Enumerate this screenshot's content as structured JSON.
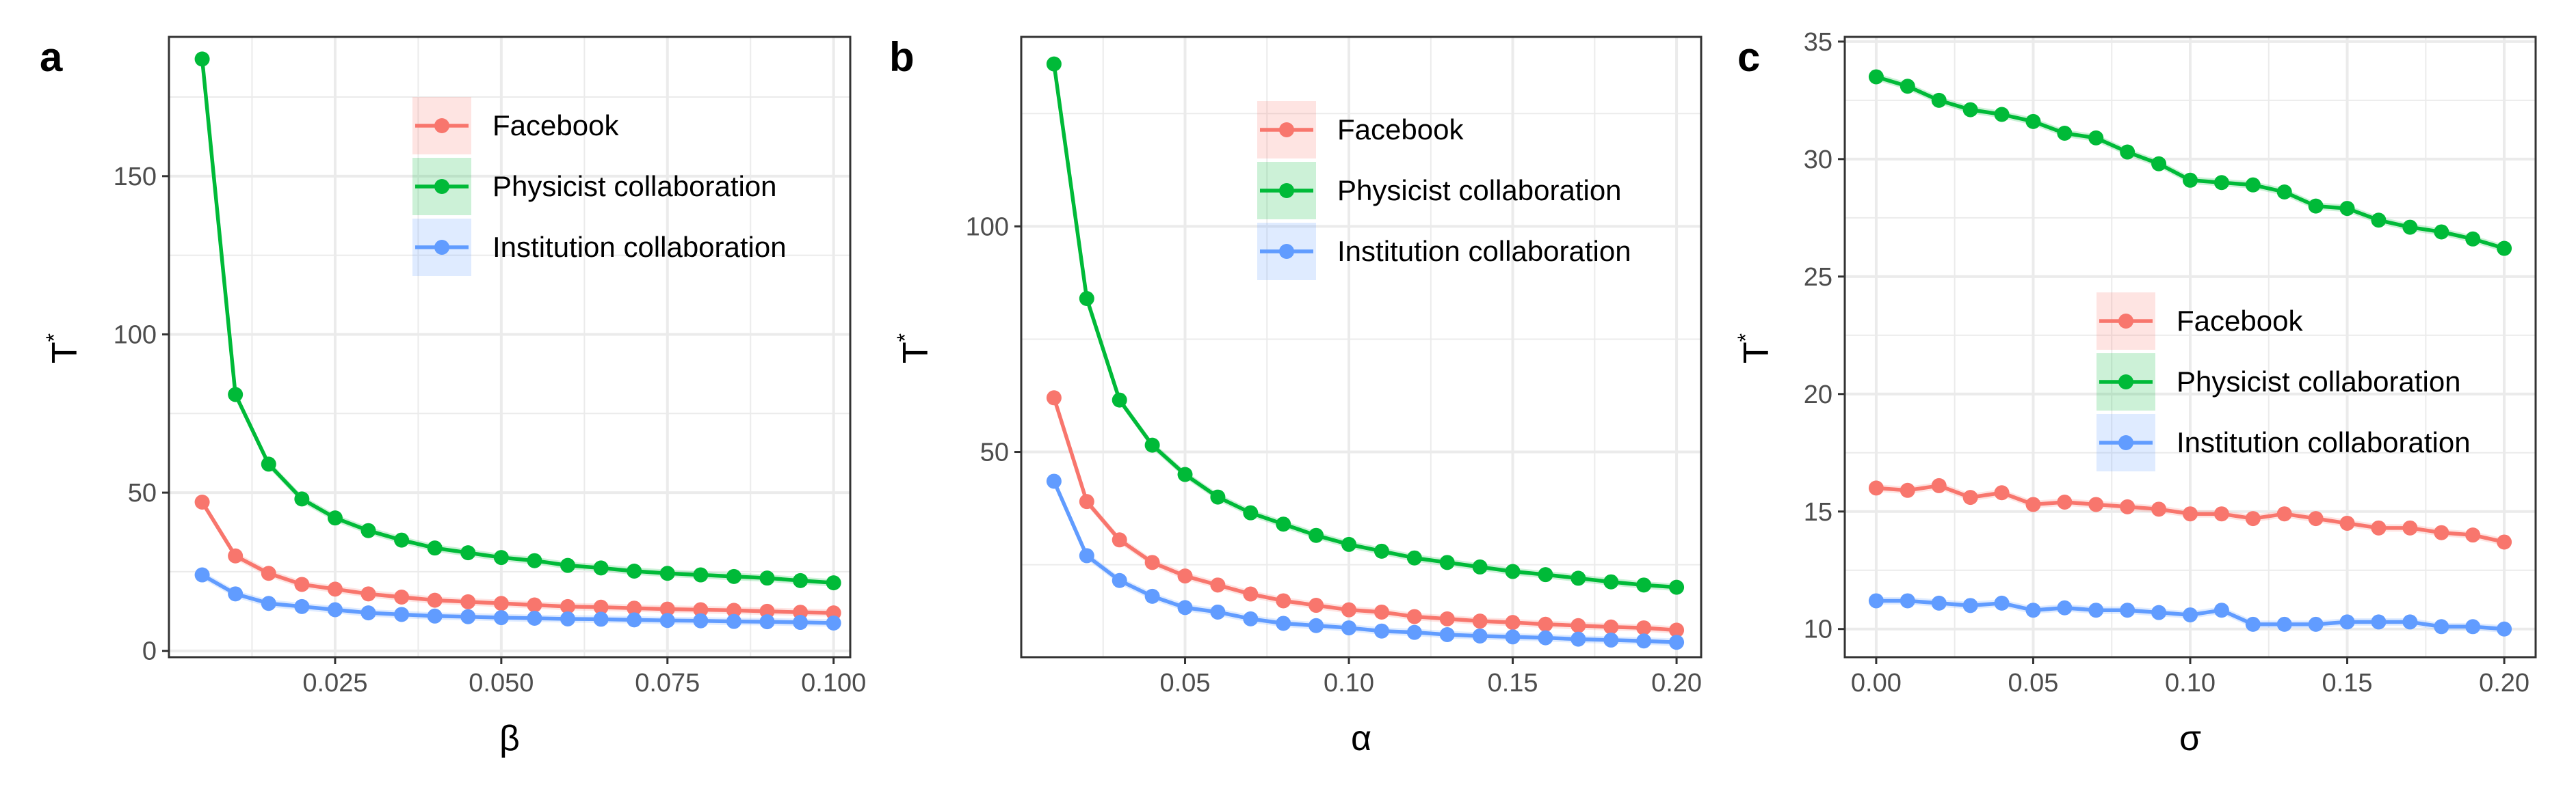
{
  "colors": {
    "facebook": "#F8766D",
    "physicist": "#00BA38",
    "institution": "#619CFF",
    "grid": "#ebebeb",
    "panel_border": "#333333",
    "tick_text": "#4d4d4d"
  },
  "chart_data": [
    {
      "type": "line",
      "panel_label": "a",
      "title": "",
      "xlabel": "β",
      "ylabel": "T",
      "ylabel_superscript": "*",
      "xlim": [
        0.0,
        0.1025
      ],
      "ylim": [
        -2,
        194
      ],
      "x_ticks": [
        0.025,
        0.05,
        0.075,
        0.1
      ],
      "x_tick_labels": [
        "0.025",
        "0.050",
        "0.075",
        "0.100"
      ],
      "y_ticks": [
        0,
        50,
        100,
        150
      ],
      "y_tick_labels": [
        "0",
        "50",
        "100",
        "150"
      ],
      "grid": true,
      "legend_position": "top-center",
      "x": [
        0.005,
        0.01,
        0.015,
        0.02,
        0.025,
        0.03,
        0.035,
        0.04,
        0.045,
        0.05,
        0.055,
        0.06,
        0.065,
        0.07,
        0.075,
        0.08,
        0.085,
        0.09,
        0.095,
        0.1
      ],
      "series": [
        {
          "name": "Facebook",
          "values": [
            47,
            30,
            24.5,
            21,
            19.5,
            18,
            17,
            16,
            15.5,
            15,
            14.5,
            14,
            13.8,
            13.5,
            13.2,
            13,
            12.8,
            12.5,
            12.2,
            12
          ]
        },
        {
          "name": "Physicist collaboration",
          "values": [
            187,
            81,
            59,
            48,
            42,
            38,
            35,
            32.5,
            31,
            29.5,
            28.5,
            27,
            26.2,
            25.2,
            24.5,
            24,
            23.5,
            23,
            22.2,
            21.5
          ]
        },
        {
          "name": "Institution collaboration",
          "values": [
            24,
            18,
            15,
            14,
            13,
            12,
            11.5,
            11,
            10.8,
            10.5,
            10.3,
            10.1,
            10,
            9.8,
            9.6,
            9.5,
            9.3,
            9.2,
            9,
            8.8
          ]
        }
      ]
    },
    {
      "type": "line",
      "panel_label": "b",
      "title": "",
      "xlabel": "α",
      "ylabel": "T",
      "ylabel_superscript": "*",
      "xlim": [
        0.0,
        0.2075
      ],
      "ylim": [
        4.5,
        142
      ],
      "x_ticks": [
        0.05,
        0.1,
        0.15,
        0.2
      ],
      "x_tick_labels": [
        "0.05",
        "0.10",
        "0.15",
        "0.20"
      ],
      "y_ticks": [
        50,
        100
      ],
      "y_tick_labels": [
        "50",
        "100"
      ],
      "grid": true,
      "legend_position": "top-right",
      "x": [
        0.01,
        0.02,
        0.03,
        0.04,
        0.05,
        0.06,
        0.07,
        0.08,
        0.09,
        0.1,
        0.11,
        0.12,
        0.13,
        0.14,
        0.15,
        0.16,
        0.17,
        0.18,
        0.19,
        0.2
      ],
      "series": [
        {
          "name": "Facebook",
          "values": [
            62,
            39,
            30.5,
            25.5,
            22.5,
            20.5,
            18.5,
            17,
            16,
            15,
            14.5,
            13.5,
            13,
            12.5,
            12.2,
            11.8,
            11.5,
            11.2,
            11,
            10.5
          ]
        },
        {
          "name": "Physicist collaboration",
          "values": [
            136,
            84,
            61.5,
            51.5,
            45,
            40,
            36.5,
            34,
            31.5,
            29.5,
            28,
            26.5,
            25.5,
            24.5,
            23.5,
            22.8,
            22,
            21.2,
            20.5,
            20
          ]
        },
        {
          "name": "Institution collaboration",
          "values": [
            43.5,
            27,
            21.5,
            18,
            15.5,
            14.5,
            13,
            12,
            11.5,
            11,
            10.3,
            10,
            9.5,
            9.2,
            9,
            8.8,
            8.5,
            8.3,
            8.1,
            7.8
          ]
        }
      ]
    },
    {
      "type": "line",
      "panel_label": "c",
      "title": "",
      "xlabel": "σ",
      "ylabel": "T",
      "ylabel_superscript": "*",
      "xlim": [
        -0.01,
        0.21
      ],
      "ylim": [
        8.8,
        35.2
      ],
      "x_ticks": [
        0.0,
        0.05,
        0.1,
        0.15,
        0.2
      ],
      "x_tick_labels": [
        "0.00",
        "0.05",
        "0.10",
        "0.15",
        "0.20"
      ],
      "y_ticks": [
        10,
        15,
        20,
        25,
        30,
        35
      ],
      "y_tick_labels": [
        "10",
        "15",
        "20",
        "25",
        "30",
        "35"
      ],
      "grid": true,
      "legend_position": "center-right",
      "x": [
        0.0,
        0.01,
        0.02,
        0.03,
        0.04,
        0.05,
        0.06,
        0.07,
        0.08,
        0.09,
        0.1,
        0.11,
        0.12,
        0.13,
        0.14,
        0.15,
        0.16,
        0.17,
        0.18,
        0.19,
        0.2
      ],
      "series": [
        {
          "name": "Facebook",
          "values": [
            16,
            15.9,
            16.1,
            15.6,
            15.8,
            15.3,
            15.4,
            15.3,
            15.2,
            15.1,
            14.9,
            14.9,
            14.7,
            14.9,
            14.7,
            14.5,
            14.3,
            14.3,
            14.1,
            14,
            13.7
          ]
        },
        {
          "name": "Physicist collaboration",
          "values": [
            33.5,
            33.1,
            32.5,
            32.1,
            31.9,
            31.6,
            31.1,
            30.9,
            30.3,
            29.8,
            29.1,
            29,
            28.9,
            28.6,
            28,
            27.9,
            27.4,
            27.1,
            26.9,
            26.6,
            26.2
          ]
        },
        {
          "name": "Institution collaboration",
          "values": [
            11.2,
            11.2,
            11.1,
            11,
            11.1,
            10.8,
            10.9,
            10.8,
            10.8,
            10.7,
            10.6,
            10.8,
            10.2,
            10.2,
            10.2,
            10.3,
            10.3,
            10.3,
            10.1,
            10.1,
            10
          ]
        }
      ]
    }
  ]
}
